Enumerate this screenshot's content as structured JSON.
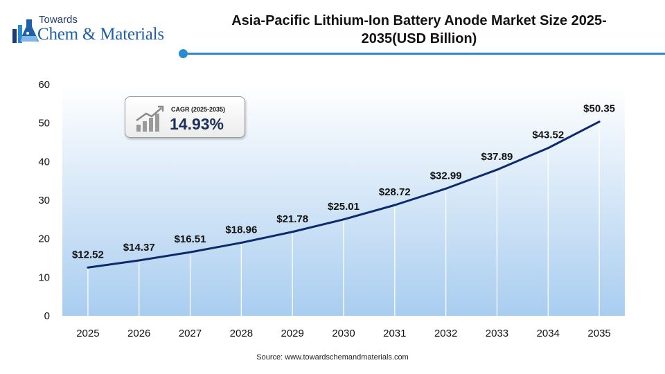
{
  "brand": {
    "line1": "Towards",
    "line2": "Chem & Materials"
  },
  "title": "Asia-Pacific Lithium-Ion Battery Anode Market Size 2025-2035(USD Billion)",
  "cagr": {
    "label": "CAGR (2025-2035)",
    "value": "14.93%"
  },
  "source": "Source: www.towardschemandmaterials.com",
  "colors": {
    "line": "#0d2a6b",
    "plot_background_top": "#ffffff",
    "plot_background_bottom": "#a9cdef",
    "accent": "#2a8bd0"
  },
  "chart_data": {
    "type": "line",
    "title": "Asia-Pacific Lithium-Ion Battery Anode Market Size 2025-2035(USD Billion)",
    "categories": [
      "2025",
      "2026",
      "2027",
      "2028",
      "2029",
      "2030",
      "2031",
      "2032",
      "2033",
      "2034",
      "2035"
    ],
    "series": [
      {
        "values": [
          12.52,
          14.37,
          16.51,
          18.96,
          21.78,
          25.01,
          28.72,
          32.99,
          37.89,
          43.52,
          50.35
        ],
        "data_labels": [
          "$12.52",
          "$14.37",
          "$16.51",
          "$18.96",
          "$21.78",
          "$25.01",
          "$28.72",
          "$32.99",
          "$37.89",
          "$43.52",
          "$50.35"
        ]
      }
    ],
    "ylim": [
      0,
      60
    ],
    "yticks": [
      0,
      10,
      20,
      30,
      40,
      50,
      60
    ],
    "xlabel": "",
    "ylabel": "",
    "grid": "vertical"
  }
}
